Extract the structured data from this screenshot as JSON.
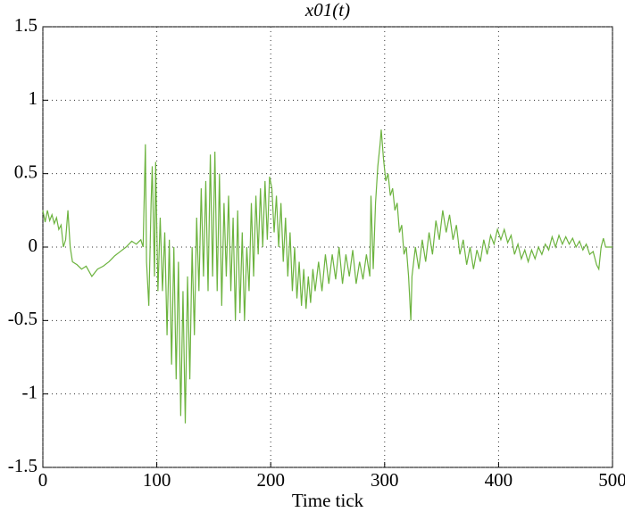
{
  "chart_data": {
    "type": "line",
    "title": "x01(t)",
    "x_label": "Time tick",
    "xlim": [
      0,
      500
    ],
    "xticks": [
      0,
      100,
      200,
      300,
      400,
      500
    ],
    "ylim": [
      -1.5,
      1.5
    ],
    "yticks": [
      -1.5,
      -1,
      -0.5,
      0,
      0.5,
      1,
      1.5
    ],
    "grid": true,
    "series": [
      {
        "color": "#6cb33e",
        "x": [
          0,
          2,
          4,
          6,
          8,
          10,
          12,
          14,
          16,
          18,
          20,
          22,
          24,
          26,
          30,
          34,
          38,
          43,
          48,
          53,
          58,
          63,
          68,
          73,
          78,
          82,
          86,
          88,
          90,
          91,
          93,
          95,
          96,
          98,
          99,
          101,
          103,
          105,
          107,
          109,
          111,
          113,
          115,
          117,
          119,
          121,
          123,
          125,
          127,
          129,
          131,
          133,
          135,
          137,
          139,
          141,
          143,
          145,
          147,
          149,
          151,
          153,
          155,
          157,
          159,
          161,
          163,
          165,
          167,
          169,
          171,
          173,
          175,
          177,
          179,
          181,
          183,
          185,
          187,
          189,
          191,
          193,
          195,
          197,
          199,
          201,
          203,
          205,
          207,
          209,
          211,
          213,
          215,
          217,
          219,
          221,
          223,
          225,
          227,
          229,
          231,
          233,
          235,
          237,
          239,
          242,
          245,
          248,
          251,
          254,
          257,
          260,
          263,
          266,
          269,
          272,
          275,
          278,
          281,
          284,
          287,
          288,
          290,
          292,
          294,
          296,
          297,
          299,
          301,
          303,
          305,
          307,
          309,
          311,
          313,
          315,
          317,
          319,
          321,
          323,
          324,
          327,
          330,
          333,
          336,
          339,
          342,
          345,
          348,
          351,
          354,
          357,
          360,
          363,
          366,
          369,
          372,
          375,
          378,
          381,
          384,
          387,
          390,
          393,
          396,
          399,
          402,
          405,
          408,
          411,
          414,
          417,
          420,
          423,
          426,
          429,
          432,
          435,
          438,
          441,
          444,
          447,
          450,
          453,
          456,
          459,
          462,
          465,
          468,
          471,
          474,
          477,
          480,
          483,
          486,
          488,
          490,
          492,
          494,
          497,
          500
        ],
        "values": [
          0.25,
          0.17,
          0.25,
          0.18,
          0.22,
          0.16,
          0.2,
          0.12,
          0.15,
          0.0,
          0.05,
          0.25,
          0.0,
          -0.1,
          -0.12,
          -0.15,
          -0.13,
          -0.2,
          -0.15,
          -0.13,
          -0.1,
          -0.06,
          -0.03,
          0.0,
          0.04,
          0.02,
          0.05,
          0.0,
          0.7,
          -0.1,
          -0.4,
          0.3,
          0.55,
          -0.2,
          0.58,
          -0.3,
          0.2,
          -0.3,
          0.1,
          -0.6,
          0.05,
          -0.8,
          0.0,
          -0.9,
          -0.1,
          -1.15,
          -0.3,
          -1.2,
          -0.2,
          -0.9,
          0.0,
          -0.6,
          0.2,
          -0.3,
          0.4,
          -0.2,
          0.45,
          -0.3,
          0.63,
          -0.2,
          0.65,
          -0.3,
          0.5,
          -0.4,
          0.3,
          -0.2,
          0.35,
          -0.3,
          0.2,
          -0.5,
          0.25,
          -0.45,
          0.1,
          -0.5,
          0.0,
          -0.3,
          0.3,
          -0.2,
          0.35,
          -0.05,
          0.4,
          0.0,
          0.45,
          0.05,
          0.48,
          0.4,
          0.1,
          0.35,
          0.0,
          0.3,
          -0.1,
          0.2,
          -0.2,
          0.1,
          -0.3,
          0.0,
          -0.35,
          -0.1,
          -0.4,
          -0.15,
          -0.42,
          -0.2,
          -0.38,
          -0.15,
          -0.3,
          -0.1,
          -0.3,
          -0.05,
          -0.25,
          -0.05,
          -0.22,
          0.0,
          -0.25,
          -0.05,
          -0.2,
          -0.02,
          -0.25,
          -0.1,
          -0.22,
          -0.05,
          -0.2,
          0.35,
          -0.15,
          0.3,
          0.55,
          0.7,
          0.8,
          0.6,
          0.45,
          0.5,
          0.35,
          0.4,
          0.25,
          0.3,
          0.1,
          0.15,
          -0.05,
          0.0,
          -0.2,
          -0.5,
          -0.2,
          0.0,
          -0.15,
          0.05,
          -0.1,
          0.1,
          -0.05,
          0.18,
          0.05,
          0.25,
          0.1,
          0.22,
          0.05,
          0.15,
          -0.05,
          0.05,
          -0.12,
          0.0,
          -0.15,
          -0.02,
          -0.1,
          0.05,
          -0.05,
          0.08,
          0.02,
          0.12,
          0.05,
          0.12,
          0.03,
          0.08,
          -0.05,
          0.02,
          -0.08,
          -0.02,
          -0.1,
          -0.02,
          -0.08,
          0.0,
          -0.05,
          0.02,
          -0.02,
          0.07,
          0.0,
          0.08,
          0.02,
          0.07,
          0.02,
          0.06,
          0.0,
          0.04,
          -0.02,
          0.02,
          -0.05,
          -0.03,
          -0.12,
          -0.15,
          0.0,
          0.06,
          0.0,
          0.0,
          0.0
        ]
      }
    ]
  }
}
